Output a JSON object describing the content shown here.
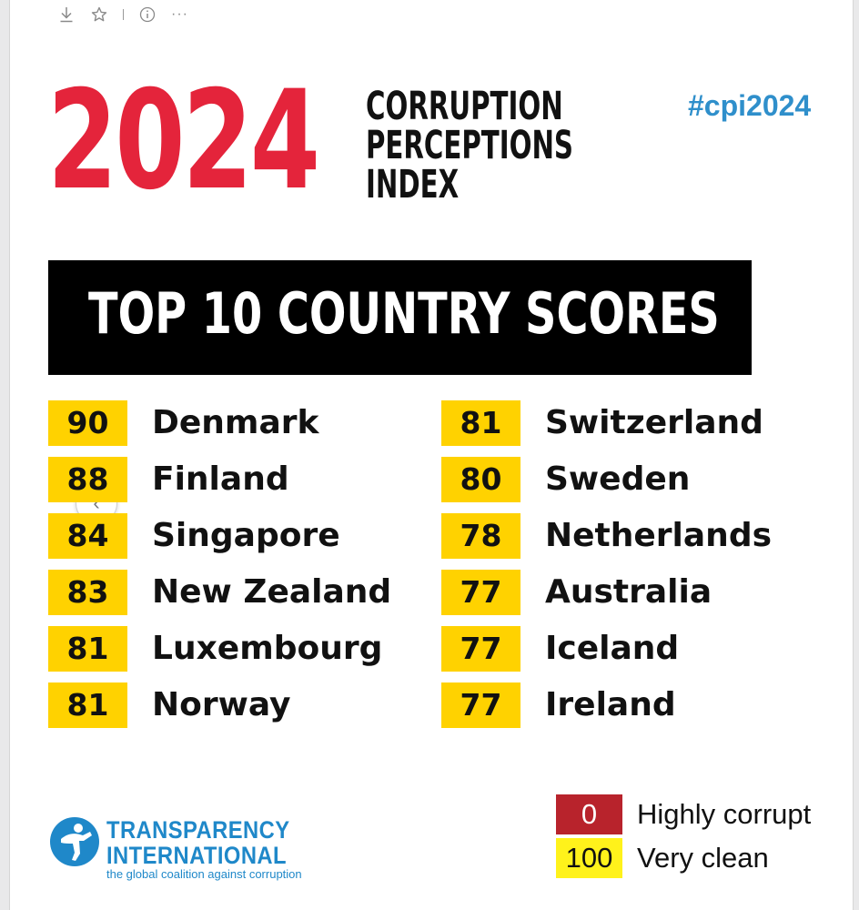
{
  "toolbar": {
    "icons": [
      "download-icon",
      "star-icon",
      "info-icon",
      "more-icon"
    ],
    "more_label": "···"
  },
  "header": {
    "year": "2024",
    "title_lines": [
      "CORRUPTION",
      "PERCEPTIONS",
      "INDEX"
    ],
    "hashtag": "#cpi2024"
  },
  "banner": {
    "title": "TOP 10 COUNTRY SCORES"
  },
  "scores": {
    "left": [
      {
        "score": "90",
        "country": "Denmark"
      },
      {
        "score": "88",
        "country": "Finland"
      },
      {
        "score": "84",
        "country": "Singapore"
      },
      {
        "score": "83",
        "country": "New Zealand"
      },
      {
        "score": "81",
        "country": "Luxembourg"
      },
      {
        "score": "81",
        "country": "Norway"
      }
    ],
    "right": [
      {
        "score": "81",
        "country": "Switzerland"
      },
      {
        "score": "80",
        "country": "Sweden"
      },
      {
        "score": "78",
        "country": "Netherlands"
      },
      {
        "score": "77",
        "country": "Australia"
      },
      {
        "score": "77",
        "country": "Iceland"
      },
      {
        "score": "77",
        "country": "Ireland"
      }
    ]
  },
  "carousel": {
    "prev_icon": "chevron-left-icon",
    "prev_glyph": "‹"
  },
  "logo": {
    "name_line1": "TRANSPARENCY",
    "name_line2": "INTERNATIONAL",
    "tagline": "the global coalition against corruption"
  },
  "legend": [
    {
      "value": "0",
      "label": "Highly corrupt",
      "color": "#b8232c"
    },
    {
      "value": "100",
      "label": "Very clean",
      "color": "#fff21b"
    }
  ],
  "colors": {
    "year": "#e4243b",
    "hashtag": "#2f8fcb",
    "score_box": "#ffd200",
    "brand_blue": "#1f88c9"
  }
}
